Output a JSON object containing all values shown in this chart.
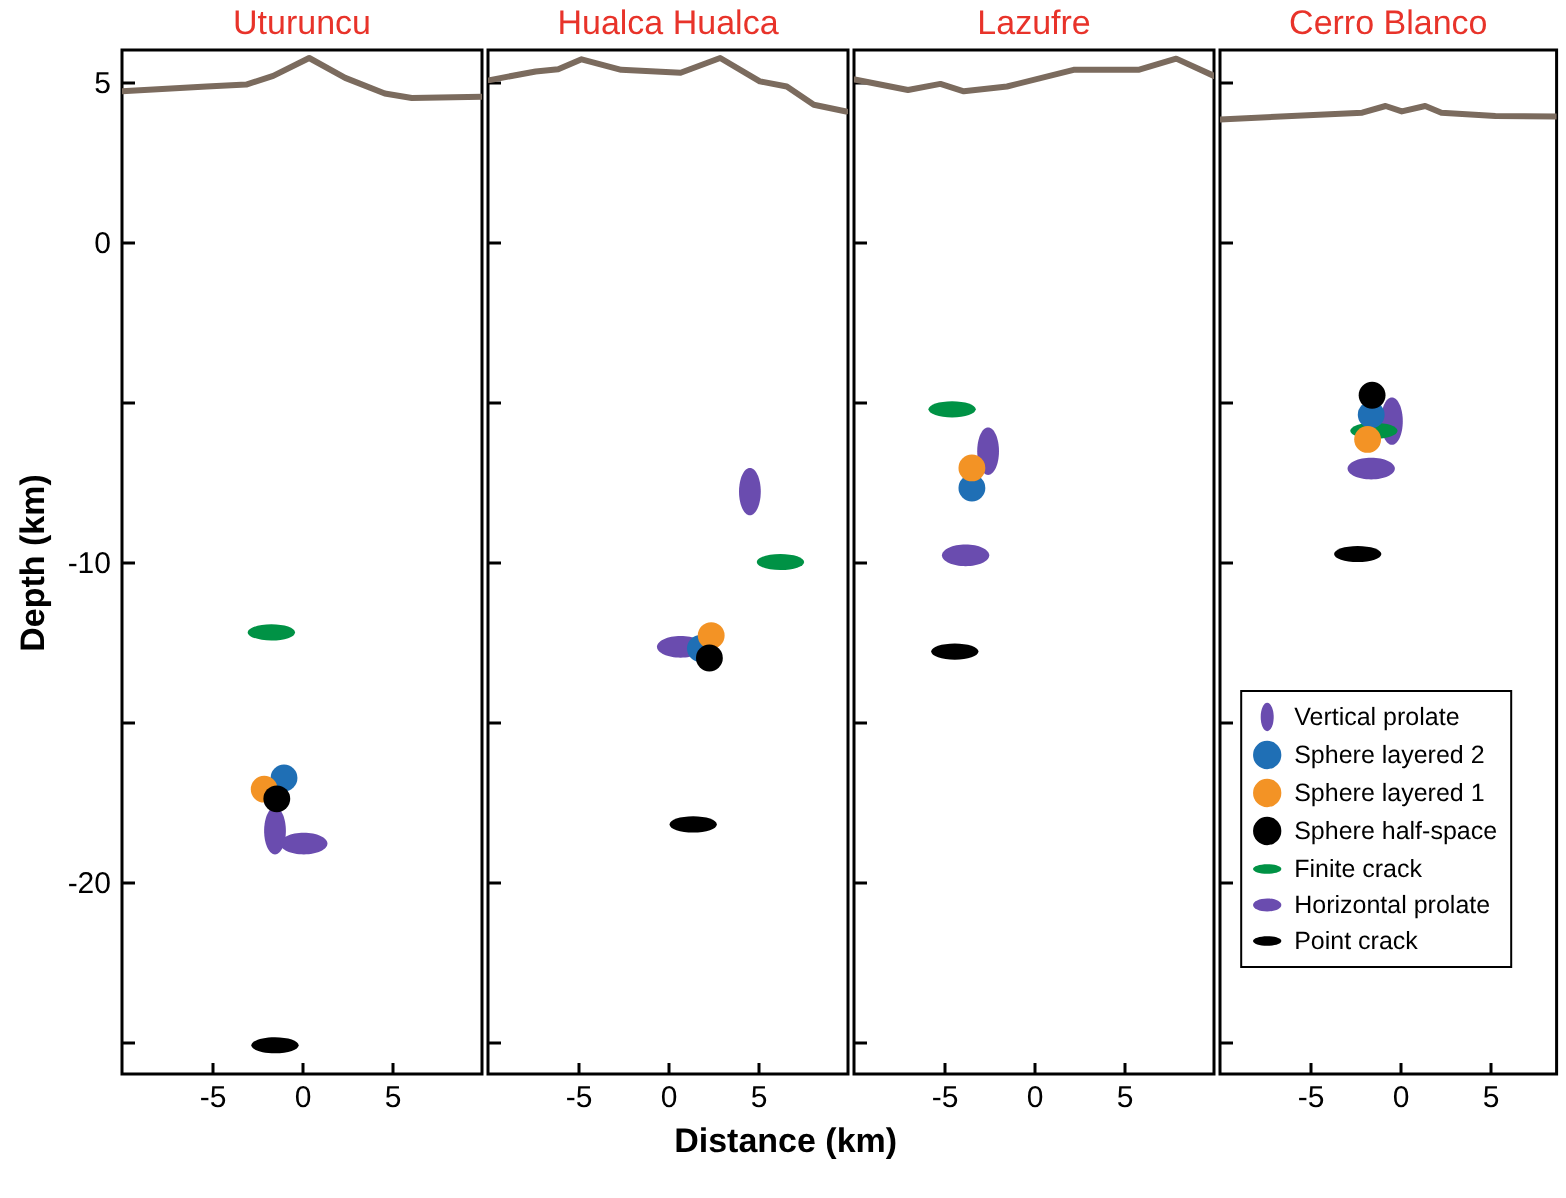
{
  "chart_data": [
    {
      "type": "scatter",
      "title": "Uturuncu",
      "xlabel": "Distance (km)",
      "ylabel": "Depth (km)",
      "xlim": [
        -10,
        10
      ],
      "xticks": [
        -5,
        0,
        5
      ],
      "ylim": [
        -26,
        6
      ],
      "yticks": [
        5,
        0,
        {
          "value": -5,
          "label": null
        },
        -10,
        {
          "value": -15,
          "label": null
        },
        -20,
        {
          "value": -25,
          "label": null
        }
      ],
      "series": [
        {
          "type": "line",
          "color": "#7b6b5e",
          "x": [
            -10,
            -5.3,
            -3.1,
            -1.6,
            0.4,
            2.4,
            4.6,
            6.1,
            10
          ],
          "values": [
            4.71,
            4.86,
            4.92,
            5.19,
            5.75,
            5.13,
            4.64,
            4.5,
            4.54
          ]
        },
        {
          "color": "#6a4caf",
          "x": [
            -1.5
          ],
          "values": [
            -18.4
          ]
        },
        {
          "color": "#1f6fb5",
          "marker": "circle",
          "x": [
            -1.0
          ],
          "values": [
            -16.75
          ]
        },
        {
          "color": "#f39325",
          "marker": "circle",
          "x": [
            -2.1
          ],
          "values": [
            -17.1
          ]
        },
        {
          "color": "#000000",
          "marker": "circle",
          "x": [
            -1.4
          ],
          "values": [
            -17.4
          ]
        },
        {
          "color": "#009245",
          "x": [
            -1.7
          ],
          "values": [
            -12.2
          ]
        },
        {
          "color": "#6a4caf",
          "x": [
            0.1
          ],
          "values": [
            -18.8
          ]
        },
        {
          "color": "#000000",
          "x": [
            -1.5
          ],
          "values": [
            -25.1
          ]
        }
      ]
    },
    {
      "type": "scatter",
      "title": "Hualca Hualca",
      "xlim": [
        -10,
        10
      ],
      "xticks": [
        -5,
        0,
        5
      ],
      "ylim": [
        -26,
        6
      ],
      "yticks": [
        {
          "value": 5,
          "label": null
        },
        {
          "value": 0,
          "label": null
        },
        {
          "value": -5,
          "label": null
        },
        {
          "value": -10,
          "label": null
        },
        {
          "value": -15,
          "label": null
        },
        {
          "value": -20,
          "label": null
        },
        {
          "value": -25,
          "label": null
        }
      ],
      "tick_labels": "x",
      "series": [
        {
          "type": "line",
          "color": "#7b6b5e",
          "x": [
            -9.9,
            -7.35,
            -6.1,
            -4.8,
            -2.6,
            0.7,
            2.9,
            5.1,
            6.6,
            8.1,
            9.9
          ],
          "values": [
            5.06,
            5.33,
            5.4,
            5.71,
            5.38,
            5.29,
            5.75,
            5.02,
            4.86,
            4.29,
            4.08
          ]
        },
        {
          "color": "#6a4caf",
          "x": [
            4.55
          ],
          "values": [
            -7.8
          ]
        },
        {
          "color": "#1f6fb5",
          "marker": "circle",
          "x": [
            1.8
          ],
          "values": [
            -12.7
          ]
        },
        {
          "color": "#f39325",
          "marker": "circle",
          "x": [
            2.4
          ],
          "values": [
            -12.3
          ]
        },
        {
          "color": "#000000",
          "marker": "circle",
          "x": [
            2.3
          ],
          "values": [
            -13.0
          ]
        },
        {
          "color": "#009245",
          "x": [
            6.25
          ],
          "values": [
            -10.0
          ]
        },
        {
          "color": "#6a4caf",
          "x": [
            0.7
          ],
          "values": [
            -12.65
          ]
        },
        {
          "color": "#000000",
          "x": [
            1.4
          ],
          "values": [
            -18.2
          ]
        }
      ]
    },
    {
      "type": "scatter",
      "title": "Lazufre",
      "xlim": [
        -10,
        10
      ],
      "xticks": [
        -5,
        0,
        5
      ],
      "ylim": [
        -26,
        6
      ],
      "yticks": [
        {
          "value": 5,
          "label": null
        },
        {
          "value": 0,
          "label": null
        },
        {
          "value": -5,
          "label": null
        },
        {
          "value": -10,
          "label": null
        },
        {
          "value": -15,
          "label": null
        },
        {
          "value": -20,
          "label": null
        },
        {
          "value": -25,
          "label": null
        }
      ],
      "tick_labels": "x",
      "series": [
        {
          "type": "line",
          "color": "#7b6b5e",
          "x": [
            -9.96,
            -7.0,
            -5.2,
            -3.9,
            -1.5,
            2.2,
            5.8,
            7.9,
            10
          ],
          "values": [
            5.08,
            4.75,
            4.94,
            4.71,
            4.86,
            5.38,
            5.38,
            5.73,
            5.19
          ]
        },
        {
          "color": "#6a4caf",
          "x": [
            -2.55
          ],
          "values": [
            -6.54
          ]
        },
        {
          "color": "#1f6fb5",
          "marker": "circle",
          "x": [
            -3.45
          ],
          "values": [
            -7.69
          ]
        },
        {
          "color": "#f39325",
          "marker": "circle",
          "x": [
            -3.45
          ],
          "values": [
            -7.06
          ]
        },
        {
          "color": "#000000",
          "marker": "circle",
          "x": [
            null
          ],
          "values": [
            null
          ]
        },
        {
          "color": "#009245",
          "x": [
            -4.55
          ],
          "values": [
            -5.23
          ]
        },
        {
          "color": "#6a4caf",
          "x": [
            -3.8
          ],
          "values": [
            -9.79
          ]
        },
        {
          "color": "#000000",
          "x": [
            -4.4
          ],
          "values": [
            -12.8
          ]
        }
      ]
    },
    {
      "type": "scatter",
      "title": "Cerro Blanco",
      "xlim": [
        -10,
        8.7
      ],
      "xticks": [
        -5,
        0,
        5
      ],
      "ylim": [
        -26,
        6
      ],
      "yticks": [
        {
          "value": 5,
          "label": null
        },
        {
          "value": 0,
          "label": null
        },
        {
          "value": -5,
          "label": null
        },
        {
          "value": -10,
          "label": null
        },
        {
          "value": -15,
          "label": null
        },
        {
          "value": -20,
          "label": null
        },
        {
          "value": -25,
          "label": null
        }
      ],
      "tick_labels": "x",
      "legend": "bottom right",
      "series": [
        {
          "type": "line",
          "color": "#7b6b5e",
          "x": [
            -10,
            -2.1,
            -0.8,
            0.1,
            1.4,
            2.3,
            5.3,
            8.7
          ],
          "values": [
            3.83,
            4.04,
            4.25,
            4.08,
            4.25,
            4.04,
            3.94,
            3.92
          ]
        },
        {
          "name": "Vertical prolate",
          "color": "#6a4caf",
          "x": [
            -0.45
          ],
          "values": [
            -5.6
          ]
        },
        {
          "name": "Sphere layered 2",
          "color": "#1f6fb5",
          "marker": "circle",
          "x": [
            -1.6
          ],
          "values": [
            -5.4
          ]
        },
        {
          "name": "Sphere layered 1",
          "color": "#f39325",
          "marker": "circle",
          "x": [
            -1.8
          ],
          "values": [
            -6.17
          ]
        },
        {
          "name": "Sphere half-space",
          "color": "#000000",
          "marker": "circle",
          "x": [
            -1.55
          ],
          "values": [
            -4.79
          ]
        },
        {
          "name": "Finite crack",
          "color": "#009245",
          "x": [
            -1.45
          ],
          "values": [
            -5.9
          ]
        },
        {
          "name": "Horizontal prolate",
          "color": "#6a4caf",
          "x": [
            -1.6
          ],
          "values": [
            -7.08
          ]
        },
        {
          "name": "Point crack",
          "color": "#000000",
          "x": [
            -2.35
          ],
          "values": [
            -9.75
          ]
        }
      ]
    }
  ]
}
